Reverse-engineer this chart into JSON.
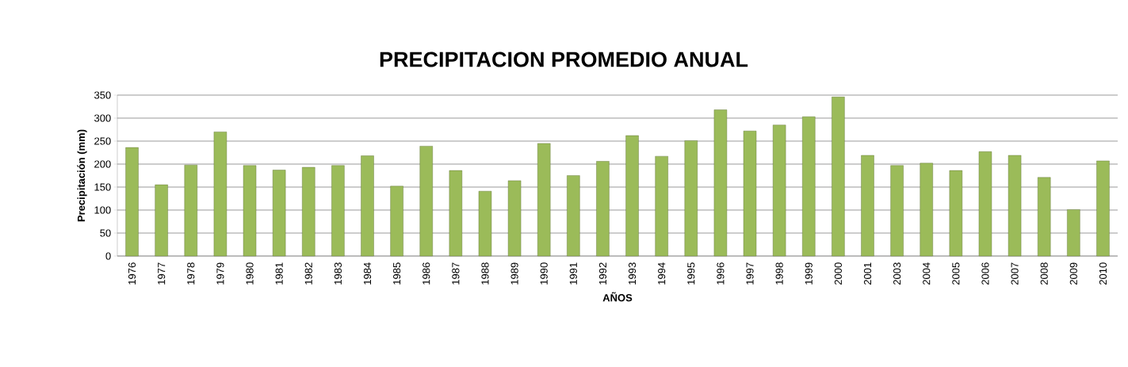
{
  "chart_data": {
    "type": "bar",
    "title": "PRECIPITACION PROMEDIO ANUAL",
    "xlabel": "AÑOS",
    "ylabel": "Precipitación (mm)",
    "categories": [
      "1976",
      "1977",
      "1978",
      "1979",
      "1980",
      "1981",
      "1982",
      "1983",
      "1984",
      "1985",
      "1986",
      "1987",
      "1988",
      "1989",
      "1990",
      "1991",
      "1992",
      "1993",
      "1994",
      "1995",
      "1996",
      "1997",
      "1998",
      "1999",
      "2000",
      "2001",
      "2003",
      "2004",
      "2005",
      "2006",
      "2007",
      "2008",
      "2009",
      "2010"
    ],
    "values": [
      236,
      155,
      198,
      270,
      197,
      187,
      193,
      197,
      218,
      152,
      239,
      186,
      141,
      164,
      245,
      175,
      206,
      262,
      217,
      251,
      318,
      272,
      285,
      303,
      346,
      219,
      197,
      202,
      186,
      227,
      219,
      171,
      101,
      207
    ],
    "color": "#9bbb59",
    "ylim": [
      0,
      350
    ],
    "yticks": [
      0,
      50,
      100,
      150,
      200,
      250,
      300,
      350
    ],
    "grid": "y"
  }
}
